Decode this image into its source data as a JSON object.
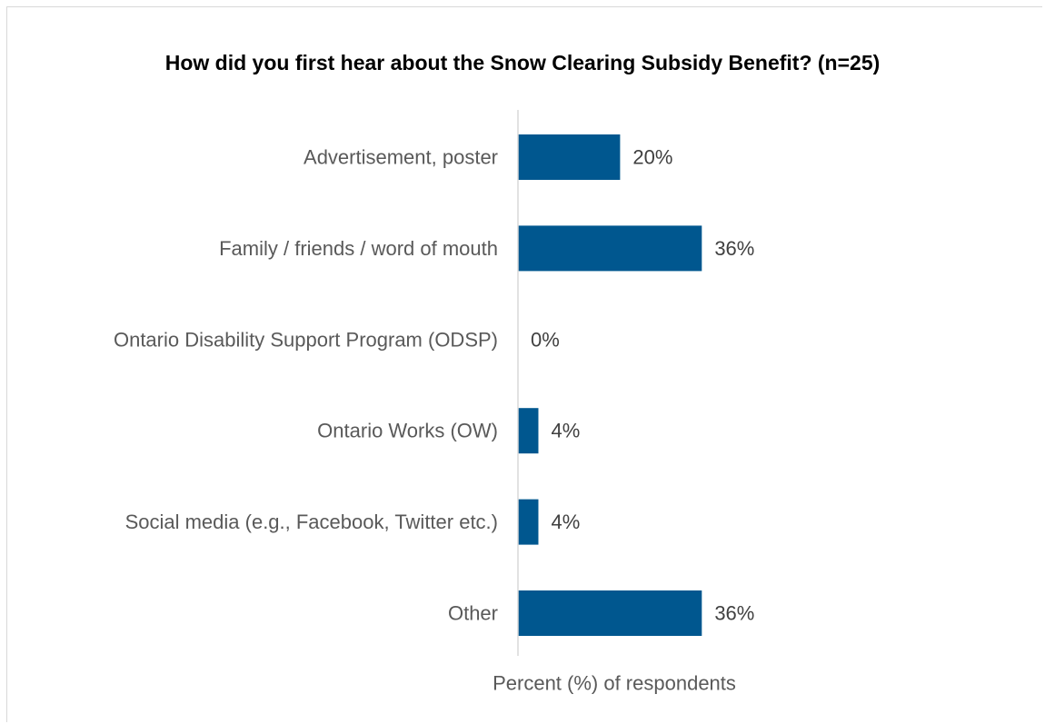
{
  "chart_data": {
    "type": "bar",
    "orientation": "horizontal",
    "title": "How did you first hear about the Snow Clearing Subsidy Benefit? (n=25)",
    "xlabel": "Percent (%) of respondents",
    "ylabel": "",
    "categories": [
      "Advertisement, poster",
      "Family / friends / word of mouth",
      "Ontario Disability Support Program (ODSP)",
      "Ontario Works (OW)",
      "Social media (e.g., Facebook, Twitter etc.)",
      "Other"
    ],
    "values": [
      20,
      36,
      0,
      4,
      4,
      36
    ],
    "data_labels": [
      "20%",
      "36%",
      "0%",
      "4%",
      "4%",
      "36%"
    ],
    "xlim": [
      0,
      100
    ],
    "grid": false,
    "legend": "none",
    "bar_color": "#00578f",
    "axis_color": "#d9d9d9",
    "text_color": "#595959"
  }
}
